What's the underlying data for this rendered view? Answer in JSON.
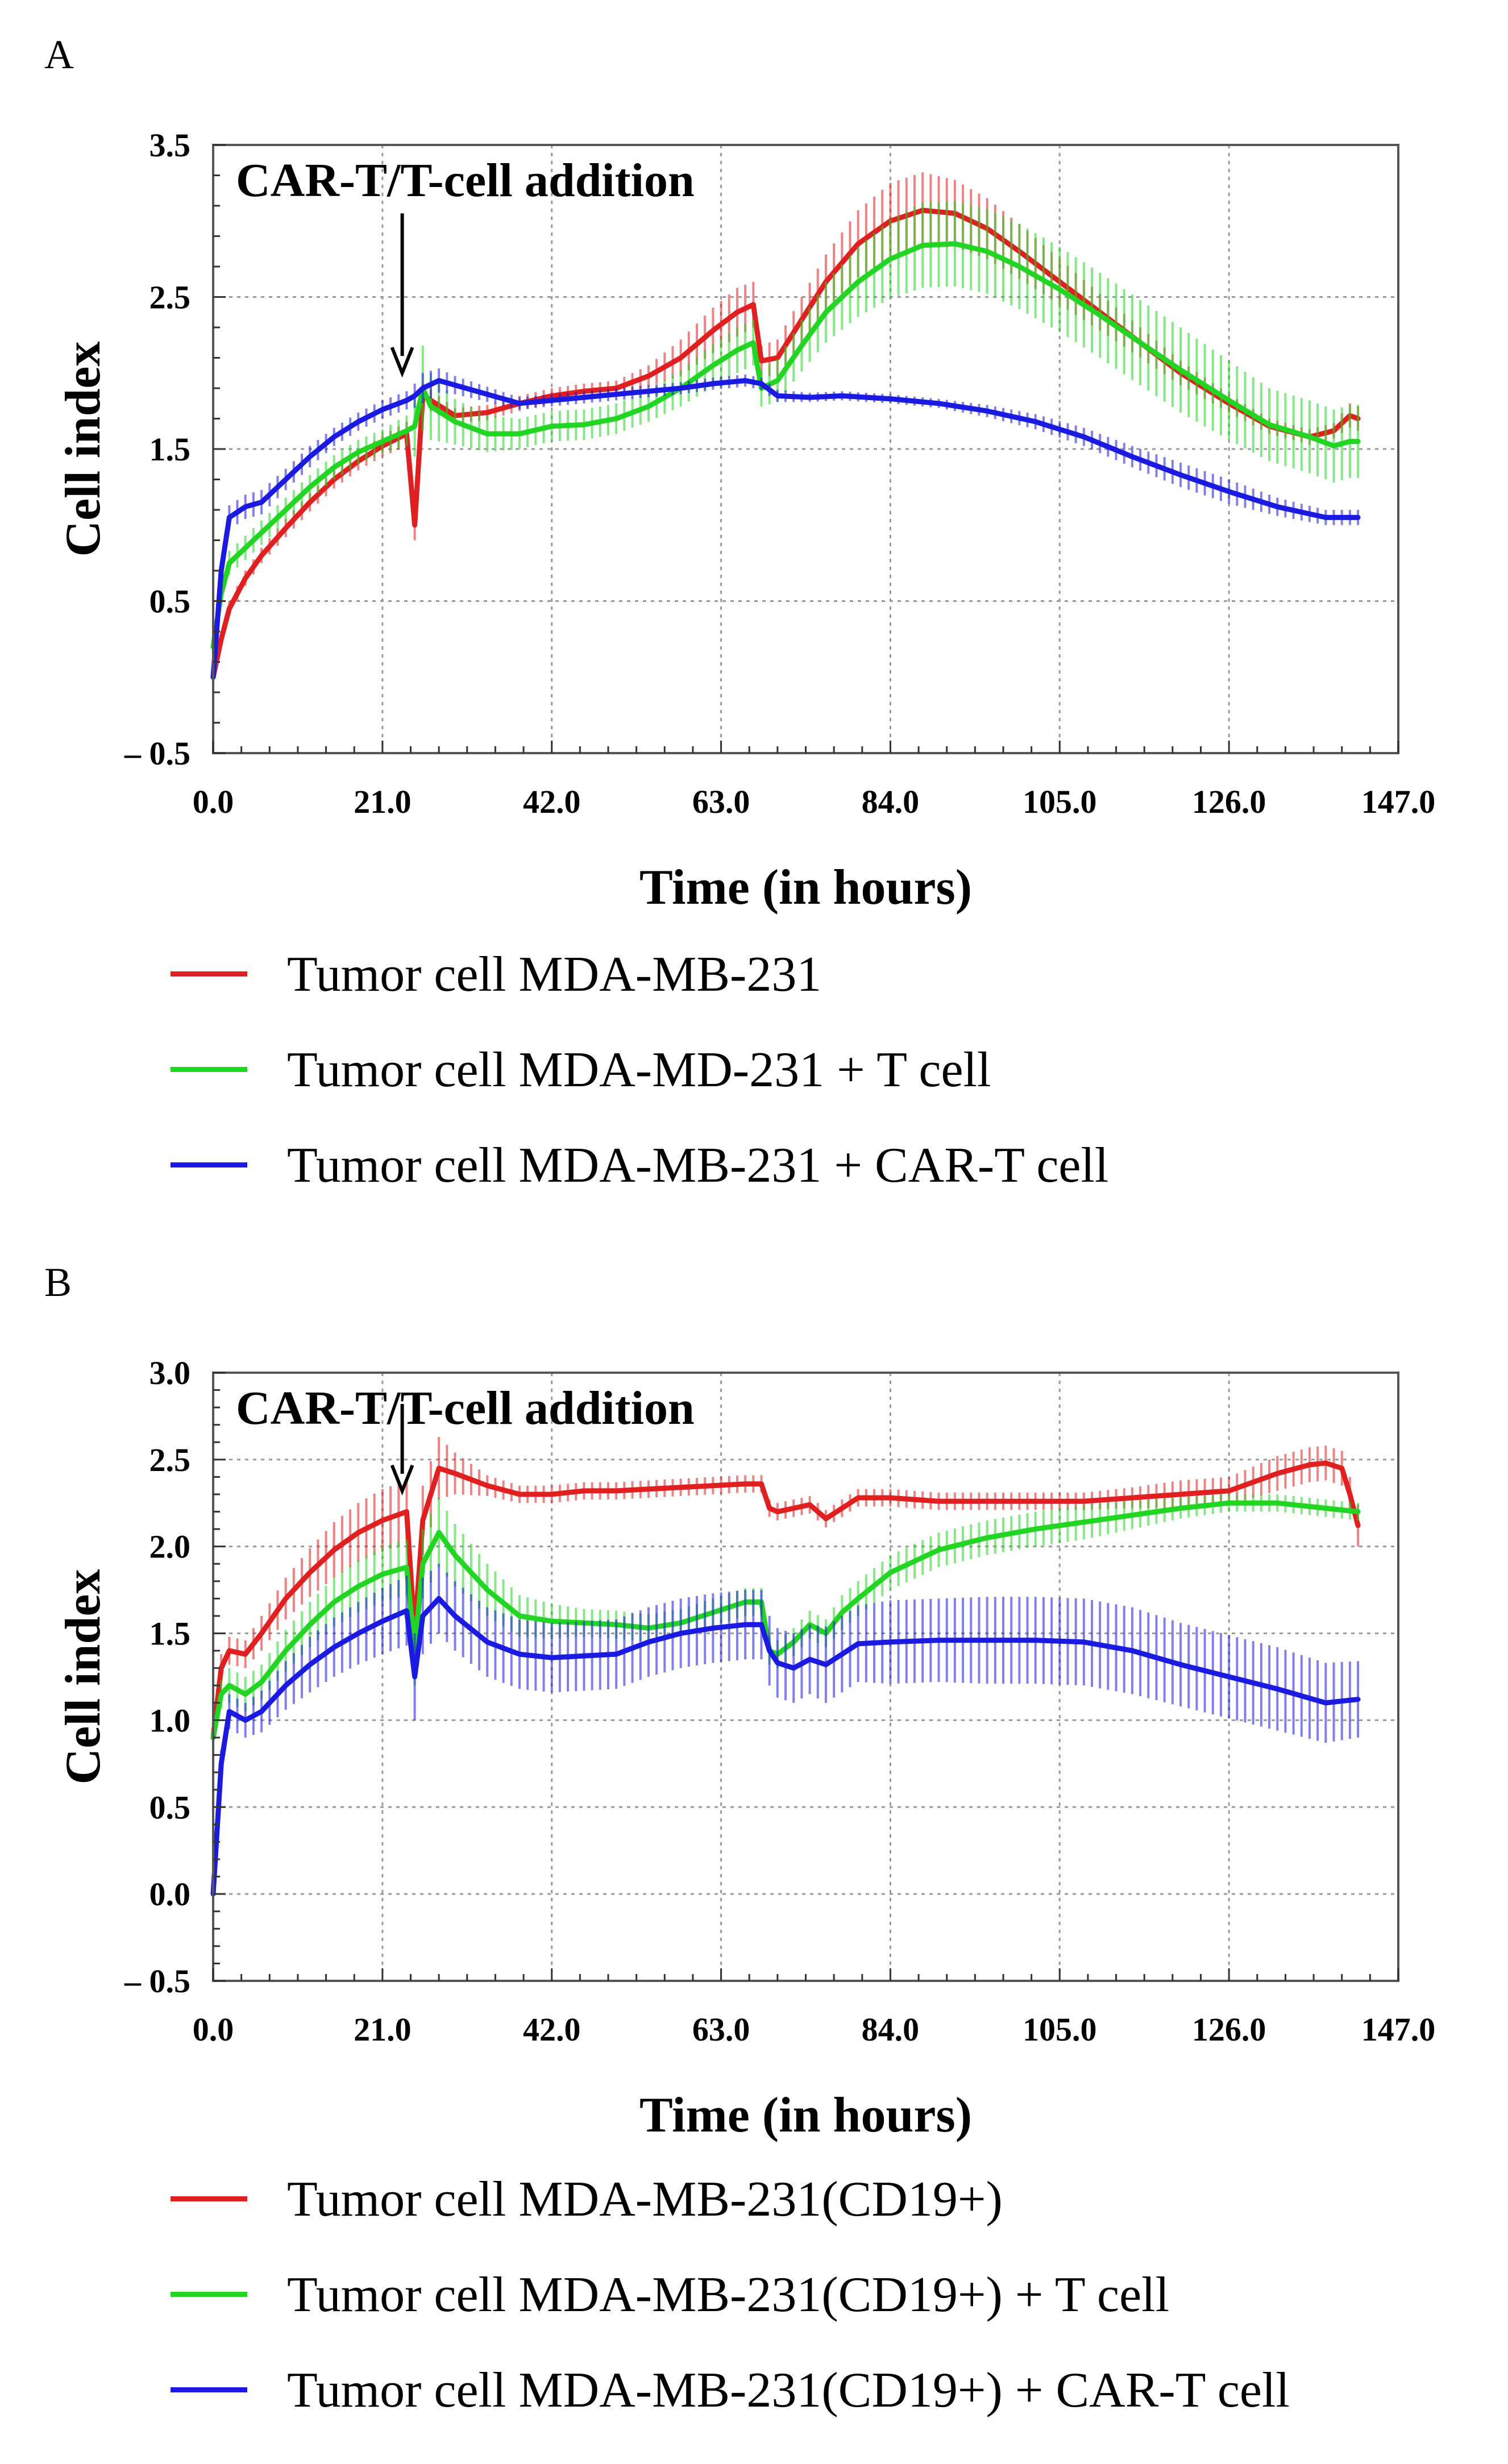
{
  "panels": {
    "a": {
      "label": "A"
    },
    "b": {
      "label": "B"
    }
  },
  "chart_data": [
    {
      "id": "A",
      "type": "line",
      "title": "",
      "xlabel": "Time (in hours)",
      "ylabel": "Cell index",
      "xlim": [
        0,
        147
      ],
      "ylim": [
        -0.5,
        3.5
      ],
      "xticks": [
        0,
        21,
        42,
        63,
        84,
        105,
        126,
        147
      ],
      "xtick_labels": [
        "0.0",
        "21.0",
        "42.0",
        "63.0",
        "84.0",
        "105.0",
        "126.0",
        "147.0"
      ],
      "yticks": [
        -0.5,
        0.5,
        1.5,
        2.5,
        3.5
      ],
      "ytick_labels": [
        "– 0.5",
        "0.5",
        "1.5",
        "2.5",
        "3.5"
      ],
      "grid": true,
      "annotation": {
        "text": "CAR-T/T-cell addition",
        "x": 25,
        "arrow_from_y": 3.05,
        "arrow_to_y": 2.0
      },
      "series": [
        {
          "name": "Tumor cell MDA-MB-231",
          "color": "#e02020",
          "x": [
            0,
            1,
            2,
            4,
            6,
            9,
            12,
            15,
            18,
            21,
            24,
            25,
            26,
            27,
            30,
            34,
            38,
            42,
            46,
            50,
            54,
            58,
            62,
            65,
            67,
            68,
            70,
            73,
            76,
            80,
            84,
            88,
            92,
            96,
            100,
            105,
            110,
            115,
            120,
            126,
            131,
            136,
            139,
            141,
            142
          ],
          "y": [
            0.0,
            0.25,
            0.45,
            0.65,
            0.8,
            0.98,
            1.15,
            1.3,
            1.42,
            1.52,
            1.6,
            1.0,
            1.85,
            1.82,
            1.72,
            1.74,
            1.8,
            1.85,
            1.88,
            1.9,
            1.98,
            2.1,
            2.28,
            2.4,
            2.45,
            2.08,
            2.1,
            2.35,
            2.6,
            2.85,
            3.0,
            3.07,
            3.05,
            2.95,
            2.8,
            2.6,
            2.4,
            2.2,
            2.0,
            1.8,
            1.65,
            1.58,
            1.62,
            1.72,
            1.7
          ],
          "error": [
            0.02,
            0.05,
            0.05,
            0.05,
            0.05,
            0.06,
            0.06,
            0.06,
            0.06,
            0.07,
            0.08,
            0.1,
            0.08,
            0.07,
            0.05,
            0.05,
            0.05,
            0.05,
            0.05,
            0.05,
            0.07,
            0.12,
            0.15,
            0.16,
            0.15,
            0.1,
            0.12,
            0.15,
            0.18,
            0.22,
            0.25,
            0.25,
            0.22,
            0.2,
            0.18,
            0.15,
            0.12,
            0.1,
            0.08,
            0.06,
            0.05,
            0.05,
            0.05,
            0.08,
            0.08
          ]
        },
        {
          "name": "Tumor cell MDA-MD-231 + T cell",
          "color": "#22d522",
          "x": [
            0,
            1,
            2,
            4,
            6,
            9,
            12,
            15,
            18,
            21,
            24,
            25,
            26,
            27,
            30,
            34,
            38,
            42,
            46,
            50,
            54,
            58,
            62,
            65,
            67,
            68,
            70,
            73,
            76,
            80,
            84,
            88,
            92,
            96,
            100,
            105,
            110,
            115,
            120,
            126,
            131,
            136,
            139,
            141,
            142
          ],
          "y": [
            0.2,
            0.55,
            0.75,
            0.85,
            0.95,
            1.1,
            1.25,
            1.38,
            1.48,
            1.55,
            1.62,
            1.65,
            1.9,
            1.78,
            1.68,
            1.6,
            1.6,
            1.65,
            1.66,
            1.7,
            1.78,
            1.9,
            2.05,
            2.15,
            2.2,
            1.9,
            1.95,
            2.18,
            2.4,
            2.6,
            2.75,
            2.84,
            2.85,
            2.8,
            2.7,
            2.55,
            2.38,
            2.2,
            2.02,
            1.82,
            1.66,
            1.58,
            1.52,
            1.55,
            1.55
          ],
          "error": [
            0.05,
            0.08,
            0.08,
            0.08,
            0.08,
            0.08,
            0.08,
            0.08,
            0.08,
            0.08,
            0.1,
            0.2,
            0.28,
            0.22,
            0.15,
            0.12,
            0.1,
            0.1,
            0.1,
            0.1,
            0.1,
            0.12,
            0.14,
            0.15,
            0.15,
            0.12,
            0.14,
            0.17,
            0.2,
            0.23,
            0.26,
            0.28,
            0.28,
            0.28,
            0.28,
            0.28,
            0.28,
            0.28,
            0.28,
            0.26,
            0.24,
            0.24,
            0.24,
            0.24,
            0.24
          ]
        },
        {
          "name": "Tumor cell MDA-MB-231 + CAR-T cell",
          "color": "#1a1ae0",
          "x": [
            0,
            1,
            2,
            4,
            6,
            9,
            12,
            15,
            18,
            21,
            24,
            25,
            26,
            28,
            30,
            34,
            38,
            42,
            46,
            50,
            54,
            58,
            62,
            66,
            68,
            70,
            74,
            78,
            84,
            90,
            96,
            102,
            108,
            114,
            120,
            126,
            132,
            138,
            142
          ],
          "y": [
            0.0,
            0.7,
            1.05,
            1.12,
            1.15,
            1.3,
            1.45,
            1.58,
            1.68,
            1.76,
            1.82,
            1.85,
            1.9,
            1.95,
            1.92,
            1.86,
            1.8,
            1.82,
            1.84,
            1.86,
            1.88,
            1.9,
            1.93,
            1.95,
            1.93,
            1.85,
            1.84,
            1.85,
            1.83,
            1.8,
            1.75,
            1.68,
            1.58,
            1.45,
            1.33,
            1.22,
            1.12,
            1.05,
            1.05
          ],
          "error": [
            0.02,
            0.05,
            0.08,
            0.08,
            0.08,
            0.07,
            0.07,
            0.06,
            0.06,
            0.06,
            0.06,
            0.08,
            0.1,
            0.08,
            0.06,
            0.05,
            0.04,
            0.04,
            0.04,
            0.04,
            0.04,
            0.04,
            0.04,
            0.04,
            0.04,
            0.04,
            0.03,
            0.03,
            0.03,
            0.03,
            0.04,
            0.05,
            0.06,
            0.07,
            0.08,
            0.08,
            0.06,
            0.05,
            0.05
          ]
        }
      ]
    },
    {
      "id": "B",
      "type": "line",
      "title": "",
      "xlabel": "Time (in hours)",
      "ylabel": "Cell index",
      "xlim": [
        0,
        147
      ],
      "ylim": [
        -0.5,
        3.0
      ],
      "xticks": [
        0,
        21,
        42,
        63,
        84,
        105,
        126,
        147
      ],
      "xtick_labels": [
        "0.0",
        "21.0",
        "42.0",
        "63.0",
        "84.0",
        "105.0",
        "126.0",
        "147.0"
      ],
      "yticks": [
        -0.5,
        0.0,
        0.5,
        1.0,
        1.5,
        2.0,
        2.5,
        3.0
      ],
      "ytick_labels": [
        "– 0.5",
        "0.0",
        "0.5",
        "1.0",
        "1.5",
        "2.0",
        "2.5",
        "3.0"
      ],
      "grid": true,
      "annotation": {
        "text": "CAR-T/T-cell addition",
        "x": 25,
        "arrow_from_y": 2.82,
        "arrow_to_y": 2.32
      },
      "series": [
        {
          "name": "Tumor cell MDA-MB-231(CD19+)",
          "color": "#e02020",
          "x": [
            0,
            1,
            2,
            4,
            6,
            9,
            12,
            15,
            18,
            21,
            24,
            25,
            26,
            28,
            30,
            34,
            38,
            42,
            46,
            50,
            54,
            58,
            62,
            66,
            68,
            69,
            70,
            72,
            74,
            76,
            78,
            80,
            84,
            90,
            96,
            102,
            108,
            114,
            120,
            126,
            132,
            136,
            138,
            140,
            141,
            142
          ],
          "y": [
            0.9,
            1.3,
            1.4,
            1.38,
            1.5,
            1.7,
            1.85,
            1.98,
            2.08,
            2.15,
            2.2,
            1.5,
            2.15,
            2.45,
            2.42,
            2.35,
            2.3,
            2.3,
            2.32,
            2.32,
            2.33,
            2.34,
            2.35,
            2.36,
            2.36,
            2.22,
            2.2,
            2.22,
            2.24,
            2.16,
            2.22,
            2.28,
            2.28,
            2.26,
            2.26,
            2.26,
            2.26,
            2.28,
            2.3,
            2.32,
            2.42,
            2.47,
            2.48,
            2.45,
            2.3,
            2.12
          ],
          "error": [
            0.05,
            0.08,
            0.08,
            0.08,
            0.1,
            0.12,
            0.14,
            0.16,
            0.17,
            0.18,
            0.18,
            0.2,
            0.2,
            0.18,
            0.12,
            0.06,
            0.05,
            0.05,
            0.05,
            0.05,
            0.05,
            0.05,
            0.05,
            0.05,
            0.05,
            0.05,
            0.05,
            0.05,
            0.05,
            0.05,
            0.05,
            0.05,
            0.05,
            0.05,
            0.05,
            0.05,
            0.05,
            0.06,
            0.08,
            0.08,
            0.1,
            0.1,
            0.1,
            0.1,
            0.1,
            0.12
          ]
        },
        {
          "name": "Tumor cell MDA-MB-231(CD19+) + T cell",
          "color": "#22d522",
          "x": [
            0,
            1,
            2,
            4,
            6,
            9,
            12,
            15,
            18,
            21,
            24,
            25,
            26,
            28,
            30,
            34,
            38,
            42,
            46,
            50,
            54,
            58,
            62,
            66,
            68,
            69,
            70,
            72,
            74,
            76,
            78,
            80,
            84,
            90,
            96,
            102,
            108,
            114,
            120,
            126,
            132,
            138,
            142
          ],
          "y": [
            0.9,
            1.15,
            1.2,
            1.15,
            1.22,
            1.4,
            1.55,
            1.68,
            1.77,
            1.84,
            1.88,
            1.4,
            1.9,
            2.08,
            1.95,
            1.75,
            1.6,
            1.57,
            1.56,
            1.55,
            1.53,
            1.56,
            1.62,
            1.68,
            1.68,
            1.4,
            1.38,
            1.45,
            1.55,
            1.5,
            1.62,
            1.7,
            1.85,
            1.98,
            2.05,
            2.1,
            2.14,
            2.18,
            2.22,
            2.25,
            2.25,
            2.22,
            2.2
          ],
          "error": [
            0.05,
            0.08,
            0.1,
            0.1,
            0.1,
            0.12,
            0.13,
            0.14,
            0.15,
            0.16,
            0.16,
            0.2,
            0.2,
            0.2,
            0.18,
            0.15,
            0.12,
            0.1,
            0.08,
            0.08,
            0.08,
            0.08,
            0.08,
            0.08,
            0.08,
            0.08,
            0.08,
            0.08,
            0.08,
            0.08,
            0.1,
            0.1,
            0.1,
            0.1,
            0.1,
            0.1,
            0.1,
            0.08,
            0.06,
            0.05,
            0.05,
            0.05,
            0.05
          ]
        },
        {
          "name": "Tumor cell MDA-MB-231(CD19+) + CAR-T cell",
          "color": "#1a1ae0",
          "x": [
            0,
            1,
            2,
            4,
            6,
            9,
            12,
            15,
            18,
            21,
            24,
            25,
            26,
            28,
            30,
            34,
            38,
            42,
            46,
            50,
            54,
            58,
            62,
            66,
            68,
            69,
            70,
            72,
            74,
            76,
            78,
            80,
            84,
            90,
            96,
            102,
            108,
            114,
            120,
            126,
            132,
            138,
            142
          ],
          "y": [
            0.0,
            0.75,
            1.05,
            1.0,
            1.05,
            1.2,
            1.32,
            1.42,
            1.5,
            1.57,
            1.63,
            1.25,
            1.6,
            1.7,
            1.6,
            1.45,
            1.38,
            1.36,
            1.37,
            1.38,
            1.45,
            1.5,
            1.53,
            1.55,
            1.55,
            1.4,
            1.33,
            1.3,
            1.35,
            1.32,
            1.38,
            1.44,
            1.45,
            1.46,
            1.46,
            1.46,
            1.45,
            1.4,
            1.32,
            1.25,
            1.18,
            1.1,
            1.12
          ],
          "error": [
            0.02,
            0.08,
            0.1,
            0.1,
            0.12,
            0.14,
            0.16,
            0.17,
            0.18,
            0.19,
            0.2,
            0.25,
            0.22,
            0.2,
            0.2,
            0.2,
            0.2,
            0.2,
            0.2,
            0.2,
            0.2,
            0.2,
            0.2,
            0.2,
            0.2,
            0.2,
            0.2,
            0.2,
            0.2,
            0.22,
            0.22,
            0.22,
            0.24,
            0.24,
            0.25,
            0.25,
            0.25,
            0.25,
            0.24,
            0.24,
            0.24,
            0.23,
            0.22
          ]
        }
      ]
    }
  ]
}
